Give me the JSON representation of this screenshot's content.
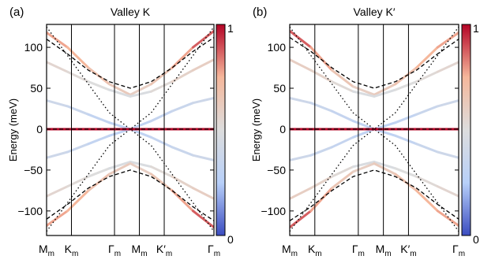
{
  "chart_data": [
    {
      "type": "line",
      "panel_label": "(a)",
      "title": "Valley K",
      "ylabel": "Energy (meV)",
      "ylim": [
        -130,
        128
      ],
      "y_ticks": [
        -100,
        -50,
        0,
        50,
        100
      ],
      "x_ticks": [
        "M",
        "K",
        "Γ",
        "M",
        "K′",
        "Γ"
      ],
      "x_tick_subscripts": [
        "m",
        "m",
        "m",
        "m",
        "m",
        "m"
      ],
      "x_tick_positions": [
        0,
        1,
        2.732,
        3.732,
        4.732,
        6.732
      ],
      "colorbar": {
        "min_label": "0",
        "max_label": "1",
        "colors": [
          "#3b4cc0",
          "#b8d0f9",
          "#dddddd",
          "#f5b79b",
          "#b40426"
        ]
      },
      "flat_band_energy": 0,
      "series": [
        {
          "style": "colored",
          "y": [
            118,
            100,
            75,
            55,
            42,
            55,
            75,
            100,
            120
          ],
          "w": [
            0.75,
            0.8,
            0.7,
            0.65,
            0.6,
            0.6,
            0.7,
            0.85,
            0.9
          ]
        },
        {
          "style": "colored",
          "y": [
            82,
            70,
            58,
            48,
            40,
            46,
            58,
            72,
            85
          ],
          "w": [
            0.55,
            0.55,
            0.5,
            0.5,
            0.45,
            0.5,
            0.55,
            0.6,
            0.6
          ]
        },
        {
          "style": "colored",
          "y": [
            -82,
            -70,
            -58,
            -48,
            -40,
            -46,
            -58,
            -72,
            -85
          ],
          "w": [
            0.55,
            0.55,
            0.5,
            0.5,
            0.45,
            0.5,
            0.55,
            0.6,
            0.6
          ]
        },
        {
          "style": "colored",
          "y": [
            -118,
            -100,
            -75,
            -55,
            -42,
            -55,
            -75,
            -100,
            -120
          ],
          "w": [
            0.75,
            0.8,
            0.7,
            0.65,
            0.6,
            0.6,
            0.7,
            0.85,
            0.9
          ]
        },
        {
          "style": "colored",
          "y": [
            35,
            28,
            18,
            8,
            0,
            10,
            22,
            32,
            38
          ],
          "w": [
            0.4,
            0.38,
            0.35,
            0.3,
            0.3,
            0.32,
            0.35,
            0.38,
            0.4
          ]
        },
        {
          "style": "colored",
          "y": [
            -35,
            -28,
            -18,
            -8,
            0,
            -10,
            -22,
            -32,
            -38
          ],
          "w": [
            0.4,
            0.38,
            0.35,
            0.3,
            0.3,
            0.32,
            0.35,
            0.38,
            0.4
          ]
        },
        {
          "style": "dashed",
          "y": [
            110,
            92,
            72,
            58,
            50,
            58,
            75,
            95,
            112
          ]
        },
        {
          "style": "dashed",
          "y": [
            -110,
            -92,
            -72,
            -58,
            -50,
            -58,
            -75,
            -95,
            -112
          ]
        },
        {
          "style": "dotted",
          "y": [
            125,
            90,
            55,
            20,
            0,
            -20,
            -55,
            -90,
            -125
          ]
        },
        {
          "style": "dotted",
          "y": [
            -125,
            -90,
            -55,
            -20,
            0,
            20,
            55,
            90,
            125
          ]
        }
      ]
    },
    {
      "type": "line",
      "panel_label": "(b)",
      "title": "Valley K′",
      "ylabel": "Energy (meV)",
      "ylim": [
        -130,
        128
      ],
      "y_ticks": [
        -100,
        -50,
        0,
        50,
        100
      ],
      "x_ticks": [
        "M",
        "K",
        "Γ",
        "M",
        "K′",
        "Γ"
      ],
      "x_tick_subscripts": [
        "m",
        "m",
        "m",
        "m",
        "m",
        "m"
      ],
      "x_tick_positions": [
        0,
        1,
        2.732,
        3.732,
        4.732,
        6.732
      ],
      "colorbar": {
        "min_label": "0",
        "max_label": "1",
        "colors": [
          "#3b4cc0",
          "#b8d0f9",
          "#dddddd",
          "#f5b79b",
          "#b40426"
        ]
      },
      "flat_band_energy": 0,
      "series": [
        {
          "style": "colored",
          "y": [
            120,
            100,
            72,
            52,
            42,
            55,
            75,
            100,
            118
          ],
          "w": [
            0.9,
            0.85,
            0.7,
            0.6,
            0.6,
            0.65,
            0.7,
            0.8,
            0.75
          ]
        },
        {
          "style": "colored",
          "y": [
            85,
            72,
            58,
            46,
            40,
            48,
            58,
            70,
            82
          ],
          "w": [
            0.6,
            0.6,
            0.55,
            0.5,
            0.45,
            0.5,
            0.5,
            0.55,
            0.55
          ]
        },
        {
          "style": "colored",
          "y": [
            -85,
            -72,
            -58,
            -46,
            -40,
            -48,
            -58,
            -70,
            -82
          ],
          "w": [
            0.6,
            0.6,
            0.55,
            0.5,
            0.45,
            0.5,
            0.5,
            0.55,
            0.55
          ]
        },
        {
          "style": "colored",
          "y": [
            -120,
            -100,
            -72,
            -52,
            -42,
            -55,
            -75,
            -100,
            -118
          ],
          "w": [
            0.9,
            0.85,
            0.7,
            0.6,
            0.6,
            0.65,
            0.7,
            0.8,
            0.75
          ]
        },
        {
          "style": "colored",
          "y": [
            38,
            32,
            22,
            10,
            0,
            8,
            18,
            28,
            35
          ],
          "w": [
            0.4,
            0.38,
            0.35,
            0.32,
            0.3,
            0.3,
            0.35,
            0.38,
            0.4
          ]
        },
        {
          "style": "colored",
          "y": [
            -38,
            -32,
            -22,
            -10,
            0,
            -8,
            -18,
            -28,
            -35
          ],
          "w": [
            0.4,
            0.38,
            0.35,
            0.32,
            0.3,
            0.3,
            0.35,
            0.38,
            0.4
          ]
        },
        {
          "style": "dashed",
          "y": [
            112,
            95,
            75,
            58,
            50,
            58,
            72,
            92,
            110
          ]
        },
        {
          "style": "dashed",
          "y": [
            -112,
            -95,
            -75,
            -58,
            -50,
            -58,
            -72,
            -92,
            -110
          ]
        },
        {
          "style": "dotted",
          "y": [
            125,
            90,
            55,
            20,
            0,
            -20,
            -55,
            -90,
            -125
          ]
        },
        {
          "style": "dotted",
          "y": [
            -125,
            -90,
            -55,
            -20,
            0,
            20,
            55,
            90,
            125
          ]
        }
      ]
    }
  ]
}
